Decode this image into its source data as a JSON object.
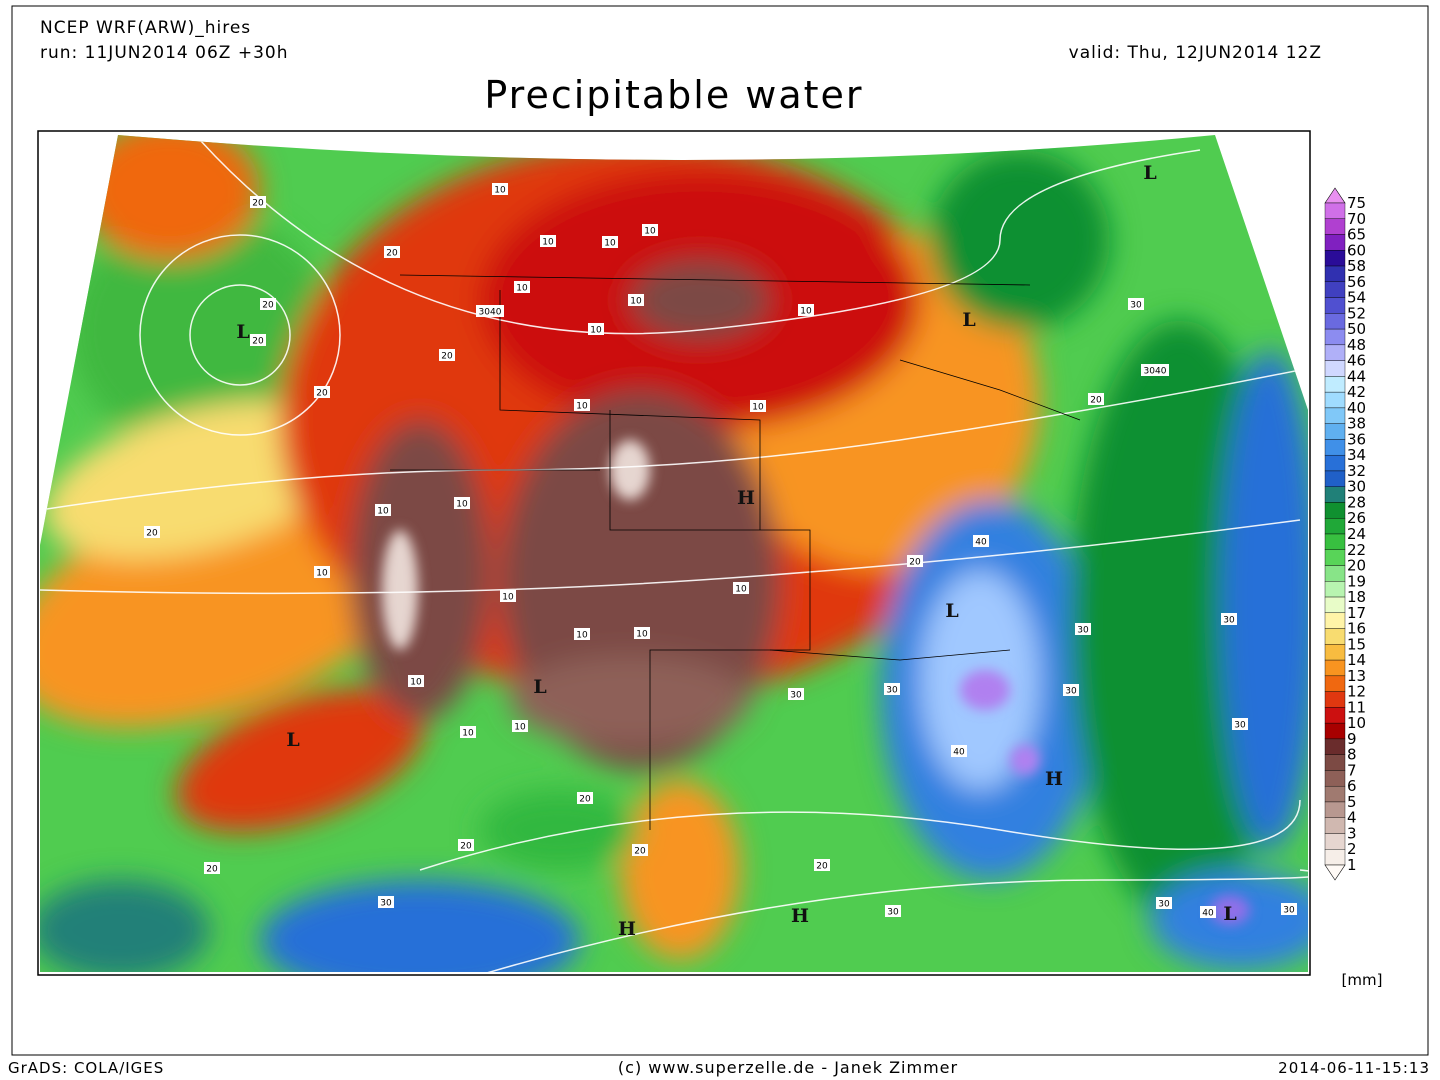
{
  "header": {
    "model": "NCEP WRF(ARW)_hires",
    "run": "run: 11JUN2014 06Z +30h",
    "valid": "valid: Thu, 12JUN2014 12Z",
    "title": "Precipitable water"
  },
  "legend": {
    "labels": [
      75,
      70,
      65,
      60,
      58,
      56,
      54,
      52,
      50,
      48,
      46,
      44,
      42,
      40,
      38,
      36,
      34,
      32,
      30,
      28,
      26,
      24,
      22,
      20,
      19,
      18,
      17,
      16,
      15,
      14,
      13,
      12,
      11,
      10,
      9,
      8,
      7,
      6,
      5,
      4,
      3,
      2,
      1
    ],
    "colors": [
      "#e890f0",
      "#d070e8",
      "#b040d0",
      "#8020c0",
      "#2a0c98",
      "#3030b0",
      "#4040c0",
      "#5050d0",
      "#6a6ae0",
      "#8c8cf0",
      "#b0b0f8",
      "#d0d8ff",
      "#c0ecff",
      "#a0dcff",
      "#80c8f8",
      "#60b0f0",
      "#4090e8",
      "#2870d8",
      "#2060c8",
      "#208078",
      "#109030",
      "#20a838",
      "#38c040",
      "#58d458",
      "#88e488",
      "#b8f4b0",
      "#e8fcc8",
      "#fff4a8",
      "#f8dc70",
      "#f8bc40",
      "#f89420",
      "#f06810",
      "#e03810",
      "#cc1010",
      "#a80000",
      "#6a2c2c",
      "#7c4a44",
      "#8e6058",
      "#a07a70",
      "#b89890",
      "#d0b8b0",
      "#e6d6d0",
      "#f6eee8",
      "#fffaf6"
    ],
    "unit": "[mm]"
  },
  "map": {
    "labels": [
      "L",
      "L",
      "L",
      "L",
      "L",
      "L",
      "L",
      "H",
      "H",
      "H",
      "H",
      "20",
      "20",
      "20",
      "20",
      "20",
      "20",
      "20",
      "20",
      "20",
      "20",
      "20",
      "20",
      "20",
      "20",
      "10",
      "10",
      "10",
      "10",
      "10",
      "10",
      "10",
      "10",
      "10",
      "10",
      "10",
      "10",
      "10",
      "10",
      "10",
      "10",
      "10",
      "10",
      "10",
      "10",
      "30",
      "30",
      "30",
      "30",
      "30",
      "30",
      "30",
      "30",
      "30",
      "30",
      "30",
      "40",
      "40",
      "40",
      "3040",
      "3040"
    ]
  },
  "footer": {
    "left": "GrADS: COLA/IGES",
    "center": "(c) www.superzelle.de - Janek Zimmer",
    "right": "2014-06-11-15:13"
  }
}
